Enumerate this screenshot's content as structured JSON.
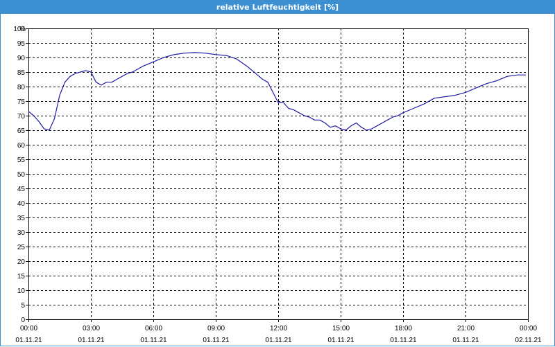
{
  "window": {
    "title": "relative Luftfeuchtigkeit [%]"
  },
  "chart_data": {
    "type": "line",
    "title": "relative Luftfeuchtigkeit [%]",
    "ylabel": "%",
    "xlabel": "",
    "ylim": [
      0,
      100
    ],
    "yticks": [
      0,
      5,
      10,
      15,
      20,
      25,
      30,
      35,
      40,
      45,
      50,
      55,
      60,
      65,
      70,
      75,
      80,
      85,
      90,
      95,
      100
    ],
    "xlim": [
      0,
      24
    ],
    "xticks": [
      {
        "time": "00:00",
        "date": "01.11.21"
      },
      {
        "time": "03:00",
        "date": "01.11.21"
      },
      {
        "time": "06:00",
        "date": "01.11.21"
      },
      {
        "time": "09:00",
        "date": "01.11.21"
      },
      {
        "time": "12:00",
        "date": "01.11.21"
      },
      {
        "time": "15:00",
        "date": "01.11.21"
      },
      {
        "time": "18:00",
        "date": "01.11.21"
      },
      {
        "time": "21:00",
        "date": "01.11.21"
      },
      {
        "time": "00:00",
        "date": "02.11.21"
      }
    ],
    "grid": true,
    "colors": {
      "line": "#1a1aa6",
      "title_bar": "#3c8fd0",
      "grid": "#000000"
    },
    "series": [
      {
        "x": [
          0,
          0.25,
          0.5,
          0.75,
          1.0,
          1.25,
          1.5,
          1.75,
          2.0,
          2.25,
          2.5,
          2.75,
          3.0,
          3.25,
          3.5,
          3.75,
          4.0,
          4.25,
          4.5,
          4.75,
          5.0,
          5.5,
          6.0,
          6.5,
          7.0,
          7.5,
          8.0,
          8.5,
          9.0,
          9.5,
          10.0,
          10.5,
          11.0,
          11.25,
          11.5,
          11.75,
          12.0,
          12.25,
          12.5,
          12.75,
          13.0,
          13.25,
          13.5,
          13.75,
          14.0,
          14.25,
          14.5,
          14.75,
          15.0,
          15.25,
          15.5,
          15.75,
          16.0,
          16.25,
          16.5,
          16.75,
          17.0,
          17.25,
          17.5,
          17.75,
          18.0,
          18.5,
          19.0,
          19.5,
          20.0,
          20.5,
          21.0,
          21.5,
          22.0,
          22.5,
          23.0,
          23.5,
          23.9
        ],
        "y": [
          71.5,
          70,
          68,
          65.5,
          65,
          69,
          77,
          81.5,
          83.5,
          84.5,
          85,
          85.5,
          85,
          81.5,
          80.5,
          81.5,
          81.5,
          82.5,
          83.5,
          84.5,
          85,
          87,
          88.5,
          90,
          91,
          91.5,
          91.7,
          91.5,
          91,
          90.7,
          89.5,
          87,
          84,
          82.5,
          81.5,
          78,
          74.5,
          74.5,
          72.5,
          72,
          71,
          70,
          69.5,
          68.5,
          68.5,
          67.5,
          66,
          66.5,
          65.5,
          65,
          66.5,
          67.5,
          66,
          65,
          65.5,
          66.5,
          67.5,
          68.5,
          69.5,
          70,
          71,
          72.5,
          74,
          76,
          76.5,
          77,
          78,
          79.5,
          81,
          82,
          83.5,
          84,
          84
        ]
      }
    ]
  }
}
